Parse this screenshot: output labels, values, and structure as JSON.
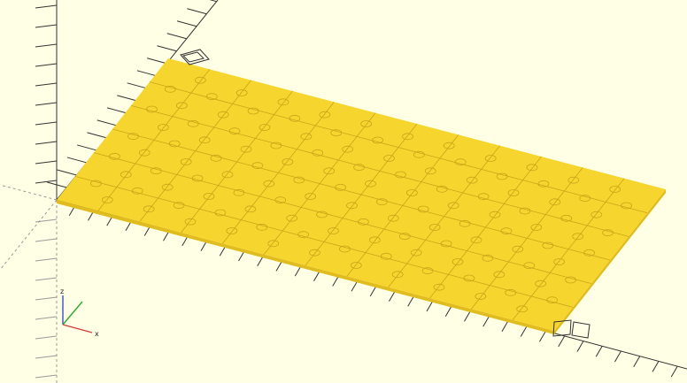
{
  "viewport": {
    "background": "#FFFFE5",
    "axis_color": "#333333",
    "dashed_axis_color": "#999999",
    "model_face_color": "#F7D52F",
    "model_edge_color": "#E0BC1E",
    "piece_line_color": "#C9A617",
    "puzzle_cols": 12,
    "puzzle_rows": 6
  },
  "axes_gizmo": {
    "x_label": "x",
    "z_label": "z",
    "x_color": "#D23C3C",
    "y_color": "#2FAA2F",
    "z_color": "#3A4FC8"
  }
}
